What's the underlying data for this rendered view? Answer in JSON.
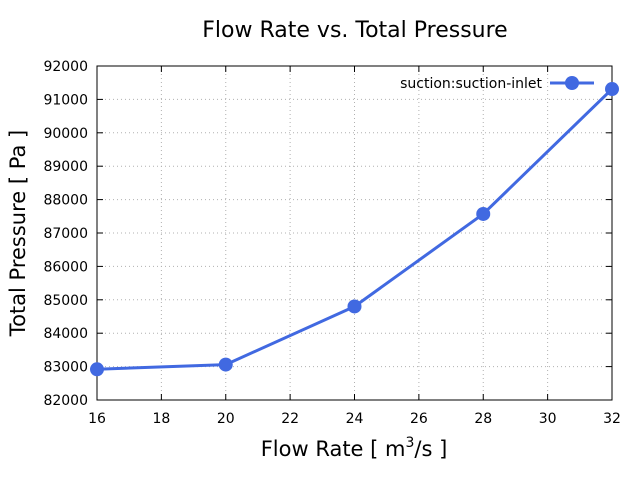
{
  "chart_data": {
    "type": "line",
    "title": "Flow Rate vs. Total Pressure",
    "xlabel_parts": {
      "main": "Flow Rate [ m",
      "sup": "3",
      "rest": "/s ]"
    },
    "ylabel": "Total Pressure [ Pa ]",
    "xlim": [
      16,
      32
    ],
    "ylim": [
      82000,
      92000
    ],
    "xticks": [
      16,
      18,
      20,
      22,
      24,
      26,
      28,
      30,
      32
    ],
    "yticks": [
      82000,
      83000,
      84000,
      85000,
      86000,
      87000,
      88000,
      89000,
      90000,
      91000,
      92000
    ],
    "grid": true,
    "legend_position": "top-right",
    "series": [
      {
        "name": "suction:suction-inlet",
        "color": "#4169e1",
        "marker": "circle",
        "x": [
          16,
          20,
          24,
          28,
          32
        ],
        "y": [
          82920,
          83060,
          84800,
          87570,
          91310
        ]
      }
    ]
  }
}
